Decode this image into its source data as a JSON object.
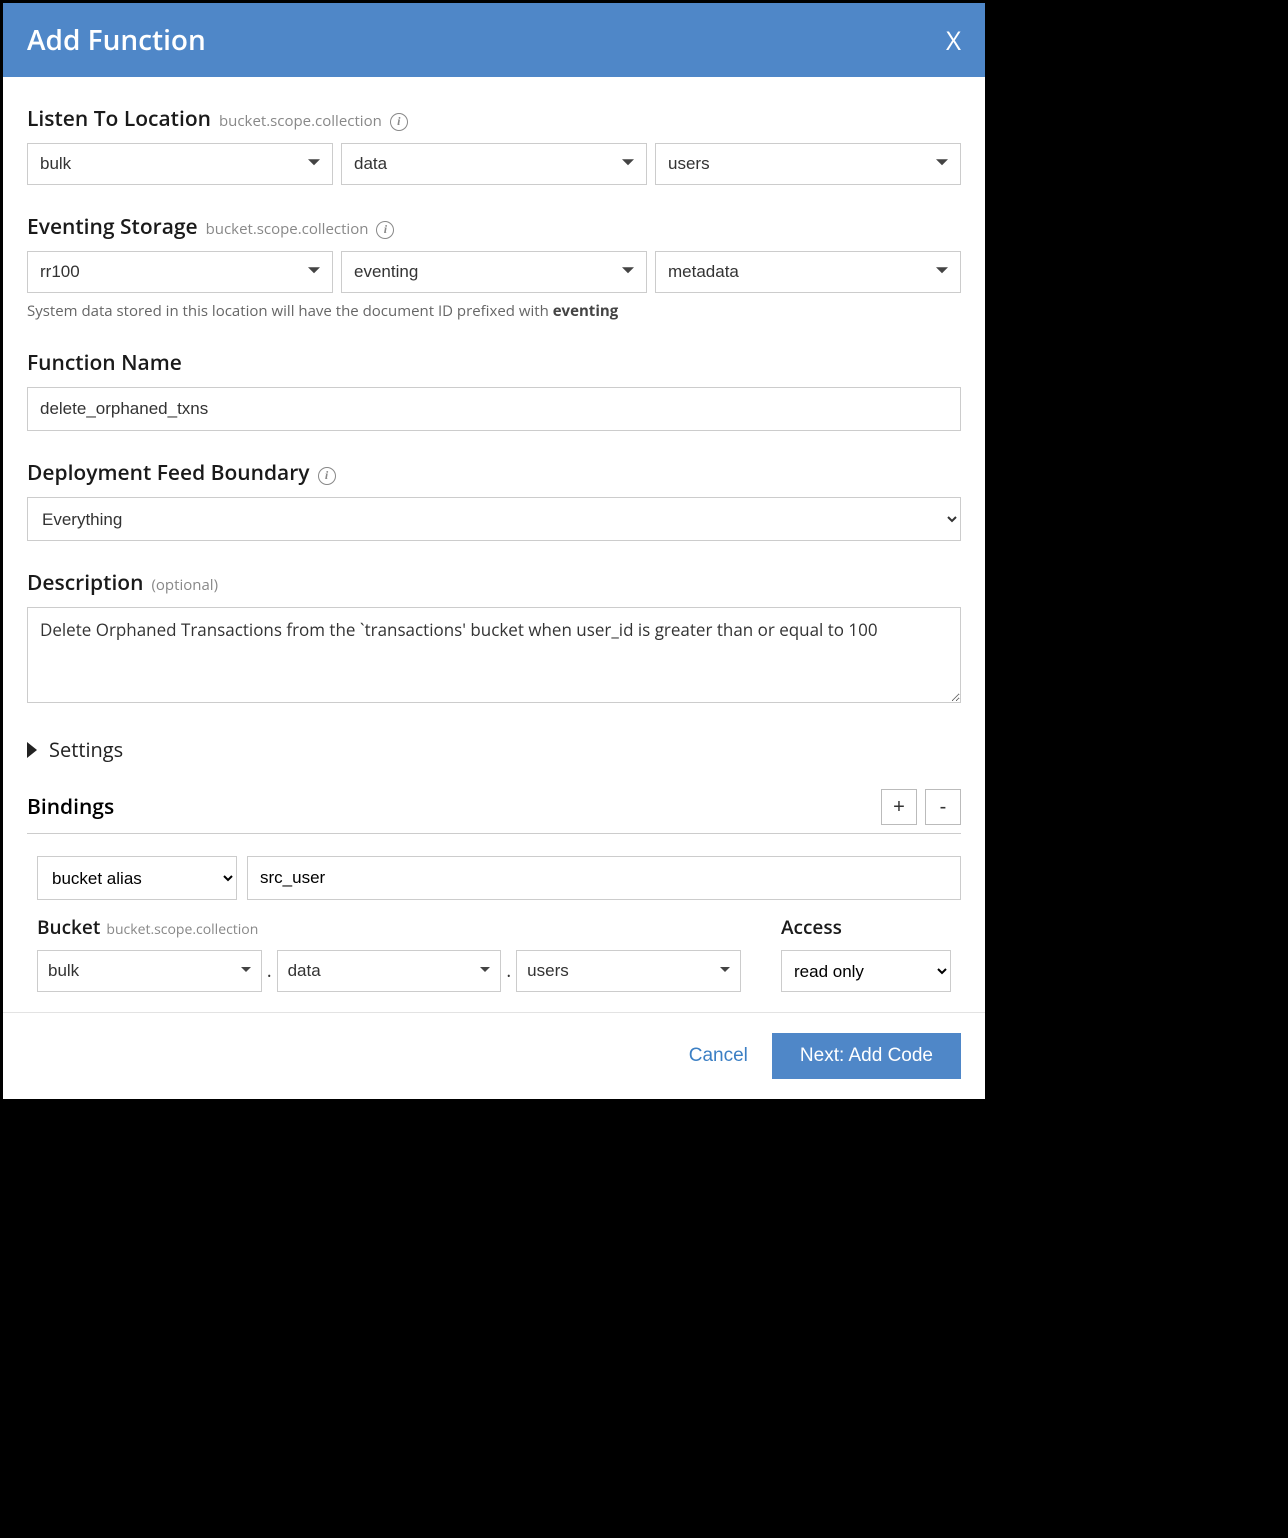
{
  "header": {
    "title": "Add Function",
    "close": "X"
  },
  "listen": {
    "label": "Listen To Location",
    "hint": "bucket.scope.collection",
    "bucket": "bulk",
    "scope": "data",
    "collection": "users"
  },
  "storage": {
    "label": "Eventing Storage",
    "hint": "bucket.scope.collection",
    "bucket": "rr100",
    "scope": "eventing",
    "collection": "metadata",
    "note_prefix": "System data stored in this location will have the document ID prefixed with ",
    "note_strong": "eventing"
  },
  "fn_name": {
    "label": "Function Name",
    "value": "delete_orphaned_txns"
  },
  "boundary": {
    "label": "Deployment Feed Boundary",
    "value": "Everything"
  },
  "description": {
    "label": "Description",
    "optional": "(optional)",
    "value": "Delete Orphaned Transactions from the `transactions' bucket when user_id is greater than or equal to 100"
  },
  "settings": {
    "label": "Settings"
  },
  "bindings": {
    "label": "Bindings",
    "plus": "+",
    "minus": "-",
    "type": "bucket alias",
    "alias": "src_user",
    "bucket_label": "Bucket",
    "bucket_hint": "bucket.scope.collection",
    "bucket": "bulk",
    "scope": "data",
    "collection": "users",
    "access_label": "Access",
    "access": "read only"
  },
  "footer": {
    "cancel": "Cancel",
    "next": "Next: Add Code"
  }
}
